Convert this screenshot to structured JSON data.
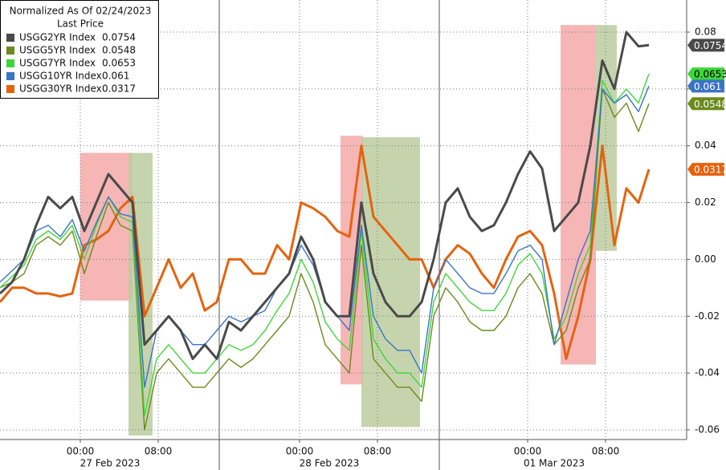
{
  "chart_data": {
    "type": "line",
    "legend_title": "Normalized As Of 02/24/2023",
    "legend_subtitle": "Last Price",
    "x": [
      0,
      15,
      30,
      45,
      60,
      75,
      90,
      105,
      120,
      135,
      150,
      165,
      180,
      195,
      210,
      225,
      240,
      255,
      270,
      285,
      300,
      315,
      330,
      345,
      360,
      375,
      390,
      405,
      420,
      435,
      450,
      465,
      480,
      495,
      510,
      525,
      540,
      555,
      570,
      585,
      600,
      615,
      630,
      645,
      660,
      675,
      690,
      705,
      720,
      735,
      750,
      765,
      780,
      795,
      808
    ],
    "xlim": [
      0,
      855
    ],
    "xticks": [
      {
        "value": 100,
        "label": "00:00"
      },
      {
        "value": 197,
        "label": "08:00"
      },
      {
        "value": 373,
        "label": "00:00"
      },
      {
        "value": 470,
        "label": "08:00"
      },
      {
        "value": 657,
        "label": "00:00"
      },
      {
        "value": 754,
        "label": "08:00"
      }
    ],
    "date_labels": [
      {
        "value": 137,
        "label": "27 Feb 2023"
      },
      {
        "value": 410,
        "label": "28 Feb 2023"
      },
      {
        "value": 690,
        "label": "01 Mar 2023"
      }
    ],
    "ylim": [
      -0.0634,
      0.0913
    ],
    "yticks": [
      -0.06,
      -0.04,
      -0.02,
      {
        "value": 0,
        "label": "0.00"
      },
      0.02,
      0.04,
      0.06,
      0.08
    ],
    "grid": true,
    "shaded_regions": [
      {
        "x": [
          100,
          165
        ],
        "y": [
          -0.0145,
          0.0375
        ],
        "color": "#f5a9a9"
      },
      {
        "x": [
          160,
          190
        ],
        "y": [
          -0.062,
          0.0375
        ],
        "color": "#bccca0"
      },
      {
        "x": [
          424,
          452
        ],
        "y": [
          -0.044,
          0.0435
        ],
        "color": "#f5a9a9"
      },
      {
        "x": [
          450,
          523
        ],
        "y": [
          -0.059,
          0.043
        ],
        "color": "#bccca0"
      },
      {
        "x": [
          698,
          742
        ],
        "y": [
          -0.037,
          0.0825
        ],
        "color": "#f5a9a9"
      },
      {
        "x": [
          742,
          768
        ],
        "y": [
          0.003,
          0.0825
        ],
        "color": "#bccca0"
      }
    ],
    "series": [
      {
        "name": "USGG30YR Index",
        "color": "#e5630e",
        "label_color": "#ffffff",
        "last_price": 0.0317,
        "values": [
          -0.015,
          -0.01,
          -0.01,
          -0.012,
          -0.012,
          -0.013,
          -0.012,
          0.005,
          0.007,
          0.01,
          0.018,
          0.022,
          -0.02,
          -0.01,
          0.0,
          -0.01,
          -0.005,
          -0.018,
          -0.015,
          0.0,
          0.0,
          -0.005,
          -0.005,
          0.005,
          0.0,
          0.02,
          0.018,
          0.015,
          0.01,
          0.008,
          0.04,
          0.015,
          0.01,
          0.005,
          0.0,
          0.0,
          -0.01,
          0.0,
          0.005,
          0.002,
          -0.005,
          -0.01,
          0.0,
          0.008,
          0.01,
          0.005,
          -0.012,
          -0.035,
          -0.02,
          0.0,
          0.04,
          0.005,
          0.025,
          0.02,
          0.0317
        ]
      },
      {
        "name": "USGG5YR Index",
        "color": "#6b8a1c",
        "label_color": "#ffffff",
        "last_price": 0.0548,
        "values": [
          -0.01,
          -0.008,
          -0.005,
          0.005,
          0.008,
          0.005,
          0.01,
          -0.005,
          0.008,
          0.02,
          0.012,
          0.01,
          -0.06,
          -0.04,
          -0.035,
          -0.04,
          -0.045,
          -0.045,
          -0.04,
          -0.035,
          -0.038,
          -0.035,
          -0.03,
          -0.025,
          -0.02,
          -0.005,
          -0.015,
          -0.03,
          -0.035,
          -0.04,
          0.005,
          -0.035,
          -0.04,
          -0.045,
          -0.045,
          -0.05,
          -0.02,
          -0.01,
          -0.015,
          -0.022,
          -0.025,
          -0.025,
          -0.02,
          -0.01,
          -0.005,
          -0.012,
          -0.03,
          -0.025,
          -0.01,
          0.0,
          0.06,
          0.05,
          0.055,
          0.045,
          0.0548
        ]
      },
      {
        "name": "USGG7YR Index",
        "color": "#3fd63a",
        "label_color": "#000000",
        "last_price": 0.0653,
        "values": [
          -0.01,
          -0.006,
          -0.002,
          0.007,
          0.01,
          0.007,
          0.012,
          0.0,
          0.012,
          0.022,
          0.015,
          0.013,
          -0.055,
          -0.035,
          -0.03,
          -0.035,
          -0.04,
          -0.04,
          -0.035,
          -0.03,
          -0.032,
          -0.03,
          -0.025,
          -0.018,
          -0.012,
          0.0,
          -0.008,
          -0.022,
          -0.028,
          -0.032,
          0.01,
          -0.028,
          -0.035,
          -0.04,
          -0.04,
          -0.045,
          -0.015,
          -0.005,
          -0.01,
          -0.015,
          -0.018,
          -0.018,
          -0.012,
          -0.002,
          0.002,
          -0.005,
          -0.028,
          -0.02,
          -0.005,
          0.005,
          0.063,
          0.055,
          0.06,
          0.055,
          0.0653
        ]
      },
      {
        "name": "USGG10YR Index",
        "color": "#3a74c4",
        "label_color": "#ffffff",
        "last_price": 0.061,
        "values": [
          -0.008,
          -0.004,
          0.0,
          0.01,
          0.012,
          0.008,
          0.014,
          0.003,
          0.013,
          0.022,
          0.016,
          0.015,
          -0.045,
          -0.025,
          -0.02,
          -0.025,
          -0.03,
          -0.03,
          -0.025,
          -0.02,
          -0.022,
          -0.02,
          -0.018,
          -0.01,
          -0.005,
          0.005,
          -0.002,
          -0.015,
          -0.02,
          -0.025,
          0.012,
          -0.02,
          -0.028,
          -0.032,
          -0.032,
          -0.04,
          -0.01,
          0.0,
          -0.005,
          -0.01,
          -0.012,
          -0.012,
          -0.005,
          0.003,
          0.005,
          0.0,
          -0.03,
          -0.015,
          0.0,
          0.01,
          0.06,
          0.055,
          0.058,
          0.052,
          0.061
        ]
      },
      {
        "name": "USGG2YR Index",
        "color": "#4a4a4a",
        "label_color": "#ffffff",
        "last_price": 0.0754,
        "values": [
          -0.012,
          -0.008,
          0.0,
          0.012,
          0.022,
          0.018,
          0.022,
          0.01,
          0.02,
          0.03,
          0.025,
          0.02,
          -0.03,
          -0.025,
          -0.02,
          -0.025,
          -0.035,
          -0.03,
          -0.035,
          -0.022,
          -0.025,
          -0.02,
          -0.015,
          -0.01,
          -0.005,
          0.008,
          0.0,
          -0.015,
          -0.02,
          -0.02,
          0.02,
          -0.005,
          -0.015,
          -0.02,
          -0.02,
          -0.015,
          0.0,
          0.02,
          0.025,
          0.015,
          0.01,
          0.012,
          0.02,
          0.03,
          0.038,
          0.032,
          0.01,
          0.015,
          0.02,
          0.04,
          0.07,
          0.06,
          0.08,
          0.075,
          0.0754
        ]
      }
    ],
    "legend_order": [
      4,
      1,
      2,
      3,
      0
    ]
  }
}
